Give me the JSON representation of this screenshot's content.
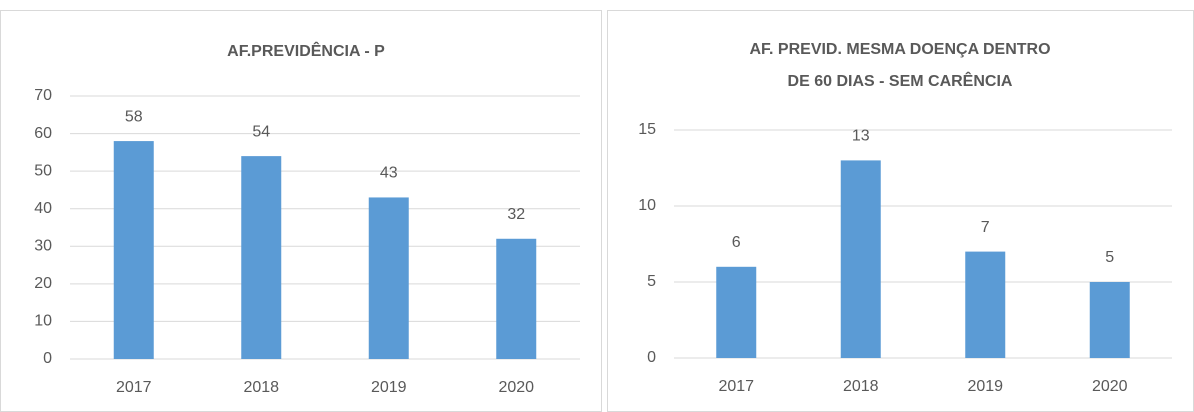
{
  "chart_data": [
    {
      "type": "bar",
      "title": [
        "AF.PREVIDÊNCIA  - P"
      ],
      "categories": [
        "2017",
        "2018",
        "2019",
        "2020"
      ],
      "values": [
        58,
        54,
        43,
        32
      ],
      "color": "#5b9bd5",
      "ylim": [
        0,
        70
      ],
      "yticks": [
        0,
        10,
        20,
        30,
        40,
        50,
        60,
        70
      ],
      "grid": true
    },
    {
      "type": "bar",
      "title": [
        "AF. PREVID. MESMA  DOENÇA DENTRO",
        "DE 60 DIAS  - SEM CARÊNCIA"
      ],
      "categories": [
        "2017",
        "2018",
        "2019",
        "2020"
      ],
      "values": [
        6,
        13,
        7,
        5
      ],
      "color": "#5b9bd5",
      "ylim": [
        0,
        15
      ],
      "yticks": [
        0,
        5,
        10,
        15
      ],
      "grid": true
    }
  ]
}
